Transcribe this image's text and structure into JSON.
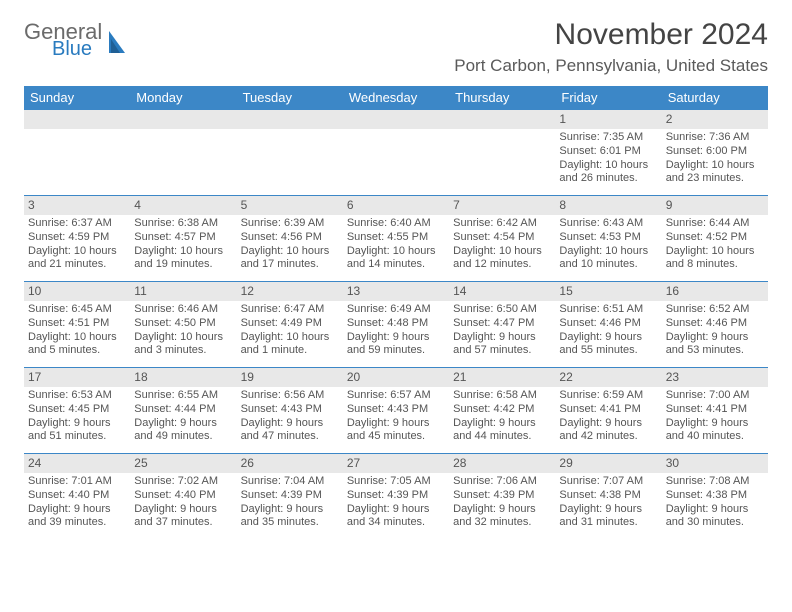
{
  "brand": {
    "part1": "General",
    "part2": "Blue"
  },
  "title": "November 2024",
  "location": "Port Carbon, Pennsylvania, United States",
  "colors": {
    "header_bg": "#3c87c7",
    "header_fg": "#ffffff",
    "daynum_bg": "#e8e8e8",
    "text": "#555555",
    "title": "#444444",
    "rule": "#3c87c7"
  },
  "dayHeaders": [
    "Sunday",
    "Monday",
    "Tuesday",
    "Wednesday",
    "Thursday",
    "Friday",
    "Saturday"
  ],
  "weeks": [
    [
      null,
      null,
      null,
      null,
      null,
      {
        "n": "1",
        "sr": "Sunrise: 7:35 AM",
        "ss": "Sunset: 6:01 PM",
        "d1": "Daylight: 10 hours",
        "d2": "and 26 minutes."
      },
      {
        "n": "2",
        "sr": "Sunrise: 7:36 AM",
        "ss": "Sunset: 6:00 PM",
        "d1": "Daylight: 10 hours",
        "d2": "and 23 minutes."
      }
    ],
    [
      {
        "n": "3",
        "sr": "Sunrise: 6:37 AM",
        "ss": "Sunset: 4:59 PM",
        "d1": "Daylight: 10 hours",
        "d2": "and 21 minutes."
      },
      {
        "n": "4",
        "sr": "Sunrise: 6:38 AM",
        "ss": "Sunset: 4:57 PM",
        "d1": "Daylight: 10 hours",
        "d2": "and 19 minutes."
      },
      {
        "n": "5",
        "sr": "Sunrise: 6:39 AM",
        "ss": "Sunset: 4:56 PM",
        "d1": "Daylight: 10 hours",
        "d2": "and 17 minutes."
      },
      {
        "n": "6",
        "sr": "Sunrise: 6:40 AM",
        "ss": "Sunset: 4:55 PM",
        "d1": "Daylight: 10 hours",
        "d2": "and 14 minutes."
      },
      {
        "n": "7",
        "sr": "Sunrise: 6:42 AM",
        "ss": "Sunset: 4:54 PM",
        "d1": "Daylight: 10 hours",
        "d2": "and 12 minutes."
      },
      {
        "n": "8",
        "sr": "Sunrise: 6:43 AM",
        "ss": "Sunset: 4:53 PM",
        "d1": "Daylight: 10 hours",
        "d2": "and 10 minutes."
      },
      {
        "n": "9",
        "sr": "Sunrise: 6:44 AM",
        "ss": "Sunset: 4:52 PM",
        "d1": "Daylight: 10 hours",
        "d2": "and 8 minutes."
      }
    ],
    [
      {
        "n": "10",
        "sr": "Sunrise: 6:45 AM",
        "ss": "Sunset: 4:51 PM",
        "d1": "Daylight: 10 hours",
        "d2": "and 5 minutes."
      },
      {
        "n": "11",
        "sr": "Sunrise: 6:46 AM",
        "ss": "Sunset: 4:50 PM",
        "d1": "Daylight: 10 hours",
        "d2": "and 3 minutes."
      },
      {
        "n": "12",
        "sr": "Sunrise: 6:47 AM",
        "ss": "Sunset: 4:49 PM",
        "d1": "Daylight: 10 hours",
        "d2": "and 1 minute."
      },
      {
        "n": "13",
        "sr": "Sunrise: 6:49 AM",
        "ss": "Sunset: 4:48 PM",
        "d1": "Daylight: 9 hours",
        "d2": "and 59 minutes."
      },
      {
        "n": "14",
        "sr": "Sunrise: 6:50 AM",
        "ss": "Sunset: 4:47 PM",
        "d1": "Daylight: 9 hours",
        "d2": "and 57 minutes."
      },
      {
        "n": "15",
        "sr": "Sunrise: 6:51 AM",
        "ss": "Sunset: 4:46 PM",
        "d1": "Daylight: 9 hours",
        "d2": "and 55 minutes."
      },
      {
        "n": "16",
        "sr": "Sunrise: 6:52 AM",
        "ss": "Sunset: 4:46 PM",
        "d1": "Daylight: 9 hours",
        "d2": "and 53 minutes."
      }
    ],
    [
      {
        "n": "17",
        "sr": "Sunrise: 6:53 AM",
        "ss": "Sunset: 4:45 PM",
        "d1": "Daylight: 9 hours",
        "d2": "and 51 minutes."
      },
      {
        "n": "18",
        "sr": "Sunrise: 6:55 AM",
        "ss": "Sunset: 4:44 PM",
        "d1": "Daylight: 9 hours",
        "d2": "and 49 minutes."
      },
      {
        "n": "19",
        "sr": "Sunrise: 6:56 AM",
        "ss": "Sunset: 4:43 PM",
        "d1": "Daylight: 9 hours",
        "d2": "and 47 minutes."
      },
      {
        "n": "20",
        "sr": "Sunrise: 6:57 AM",
        "ss": "Sunset: 4:43 PM",
        "d1": "Daylight: 9 hours",
        "d2": "and 45 minutes."
      },
      {
        "n": "21",
        "sr": "Sunrise: 6:58 AM",
        "ss": "Sunset: 4:42 PM",
        "d1": "Daylight: 9 hours",
        "d2": "and 44 minutes."
      },
      {
        "n": "22",
        "sr": "Sunrise: 6:59 AM",
        "ss": "Sunset: 4:41 PM",
        "d1": "Daylight: 9 hours",
        "d2": "and 42 minutes."
      },
      {
        "n": "23",
        "sr": "Sunrise: 7:00 AM",
        "ss": "Sunset: 4:41 PM",
        "d1": "Daylight: 9 hours",
        "d2": "and 40 minutes."
      }
    ],
    [
      {
        "n": "24",
        "sr": "Sunrise: 7:01 AM",
        "ss": "Sunset: 4:40 PM",
        "d1": "Daylight: 9 hours",
        "d2": "and 39 minutes."
      },
      {
        "n": "25",
        "sr": "Sunrise: 7:02 AM",
        "ss": "Sunset: 4:40 PM",
        "d1": "Daylight: 9 hours",
        "d2": "and 37 minutes."
      },
      {
        "n": "26",
        "sr": "Sunrise: 7:04 AM",
        "ss": "Sunset: 4:39 PM",
        "d1": "Daylight: 9 hours",
        "d2": "and 35 minutes."
      },
      {
        "n": "27",
        "sr": "Sunrise: 7:05 AM",
        "ss": "Sunset: 4:39 PM",
        "d1": "Daylight: 9 hours",
        "d2": "and 34 minutes."
      },
      {
        "n": "28",
        "sr": "Sunrise: 7:06 AM",
        "ss": "Sunset: 4:39 PM",
        "d1": "Daylight: 9 hours",
        "d2": "and 32 minutes."
      },
      {
        "n": "29",
        "sr": "Sunrise: 7:07 AM",
        "ss": "Sunset: 4:38 PM",
        "d1": "Daylight: 9 hours",
        "d2": "and 31 minutes."
      },
      {
        "n": "30",
        "sr": "Sunrise: 7:08 AM",
        "ss": "Sunset: 4:38 PM",
        "d1": "Daylight: 9 hours",
        "d2": "and 30 minutes."
      }
    ]
  ]
}
